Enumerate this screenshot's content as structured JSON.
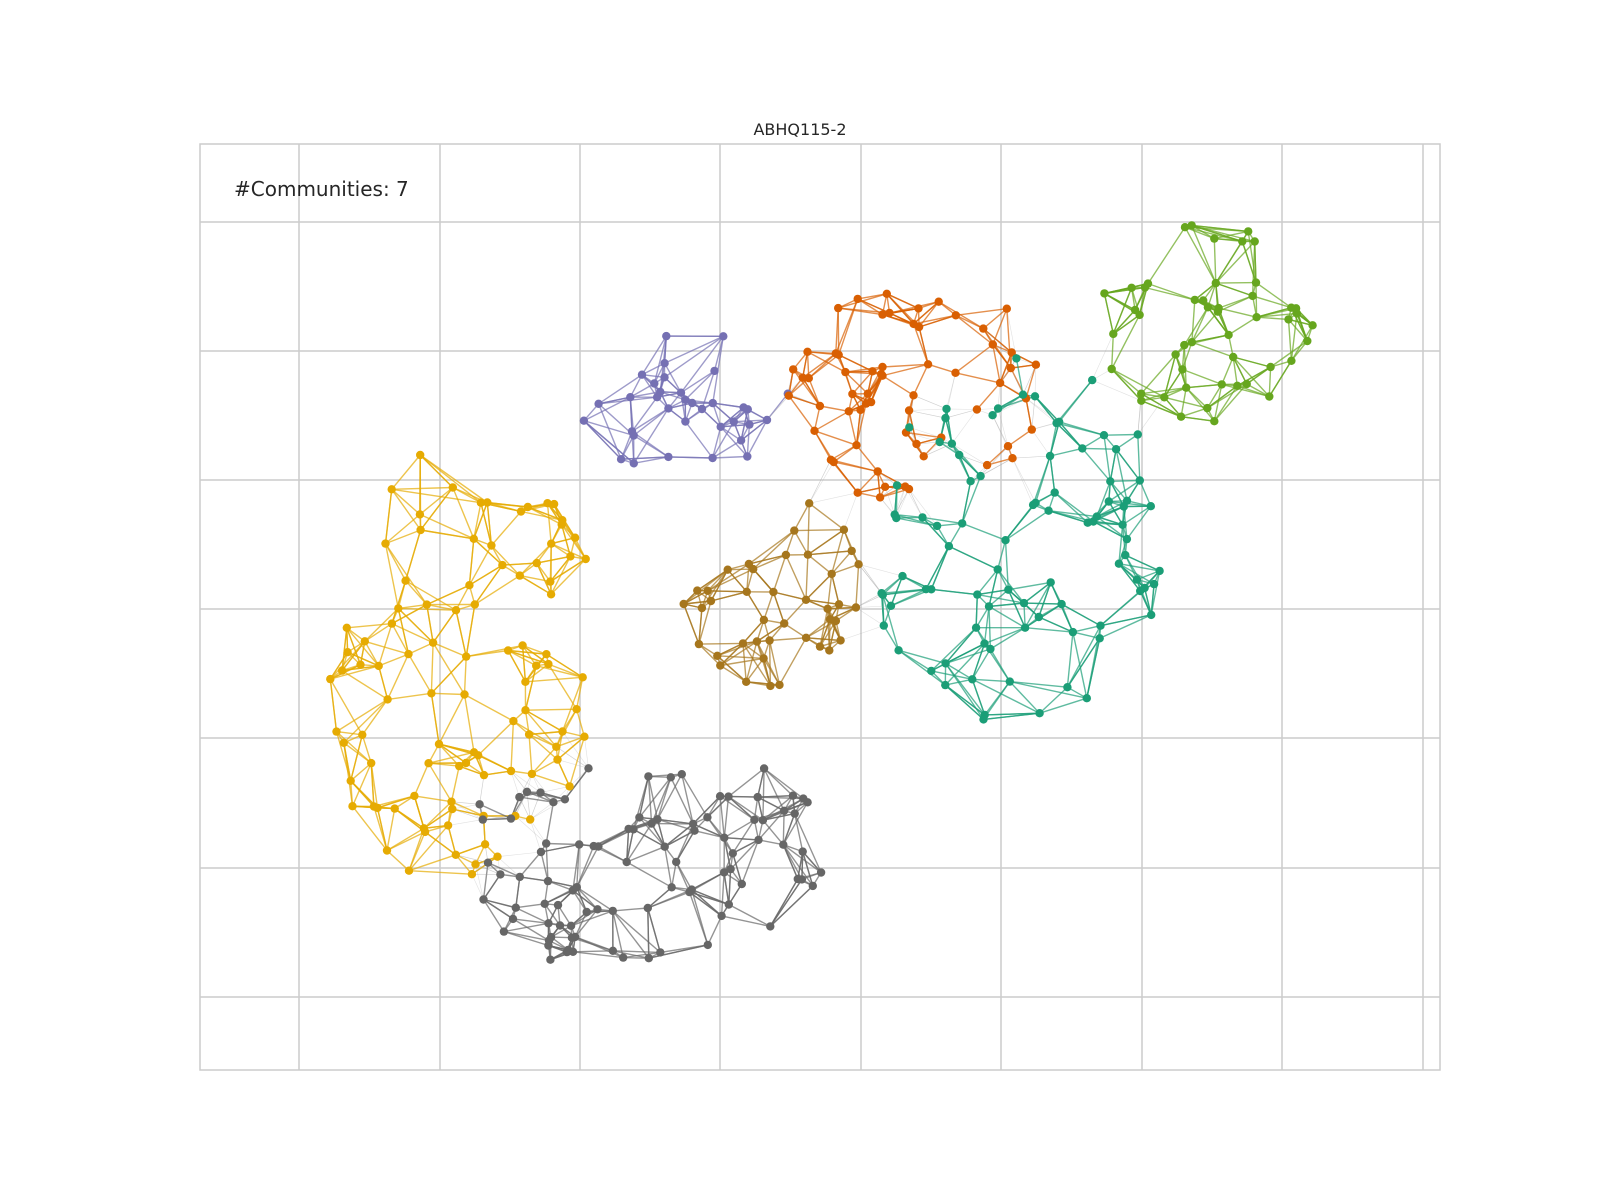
{
  "figure": {
    "title": "ABHQ115-2",
    "annotation": "#Communities: 7"
  },
  "chart_data": {
    "type": "network",
    "title": "ABHQ115-2",
    "community_count": 7,
    "grid": true,
    "communities": [
      {
        "name": "",
        "color": "#e6ab02"
      },
      {
        "name": "",
        "color": "#7570b3"
      },
      {
        "name": "",
        "color": "#d95f02"
      },
      {
        "name": "",
        "color": "#66a61e"
      },
      {
        "name": "",
        "color": "#1b9e77"
      },
      {
        "name": "",
        "color": "#a6761d"
      },
      {
        "name": "",
        "color": "#666666"
      }
    ]
  }
}
